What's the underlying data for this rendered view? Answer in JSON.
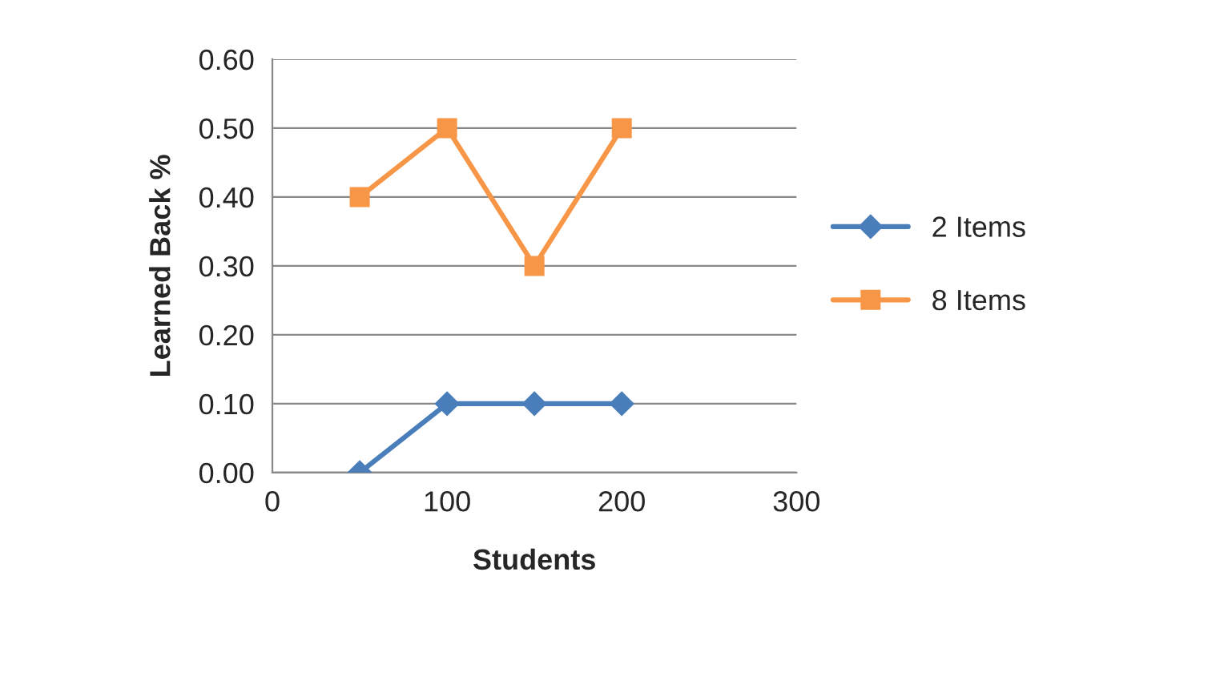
{
  "chart_data": {
    "type": "line",
    "xlabel": "Students",
    "ylabel": "Learned Back %",
    "xlim": [
      0,
      300
    ],
    "xticks": [
      0,
      100,
      200,
      300
    ],
    "ylim": [
      0,
      0.6
    ],
    "yticks": [
      {
        "value": 0,
        "label": "0.00"
      },
      {
        "value": 0.1,
        "label": "0.10"
      },
      {
        "value": 0.2,
        "label": "0.20"
      },
      {
        "value": 0.3,
        "label": "0.30"
      },
      {
        "value": 0.4,
        "label": "0.40"
      },
      {
        "value": 0.5,
        "label": "0.50"
      },
      {
        "value": 0.6,
        "label": "0.60"
      }
    ],
    "x": [
      50,
      100,
      150,
      200
    ],
    "series": [
      {
        "name": "2 Items",
        "color": "#4a7ebb",
        "marker": "diamond",
        "values": [
          0,
          0.1,
          0.1,
          0.1
        ]
      },
      {
        "name": "8 Items",
        "color": "#f79646",
        "marker": "square",
        "values": [
          0.4,
          0.5,
          0.3,
          0.5
        ]
      }
    ],
    "grid": "y",
    "legend": "right",
    "line_style": "solid"
  }
}
